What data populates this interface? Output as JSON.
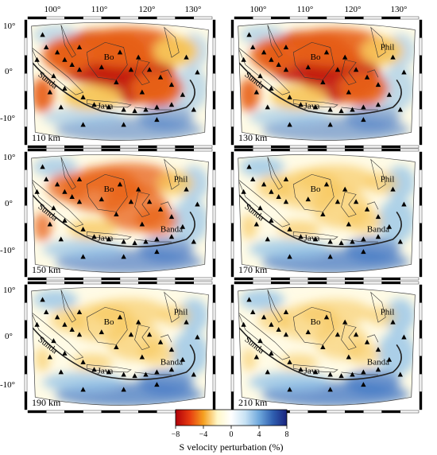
{
  "top_lon_ticks": [
    "100°",
    "110°",
    "120°",
    "130°"
  ],
  "lat_ticks": [
    "10°",
    "0°",
    "-10°"
  ],
  "region_labels": {
    "bo": "Bo",
    "sunda": "Sunda",
    "java": "Java",
    "phil": "Phil",
    "banda": "Banda"
  },
  "panels": [
    {
      "depth": "110 km",
      "strength": 1.0,
      "labels": [
        "bo",
        "sunda",
        "java"
      ]
    },
    {
      "depth": "130 km",
      "strength": 0.92,
      "labels": [
        "bo",
        "sunda",
        "java",
        "phil"
      ]
    },
    {
      "depth": "150 km",
      "strength": 0.65,
      "labels": [
        "bo",
        "sunda",
        "java",
        "phil",
        "banda"
      ]
    },
    {
      "depth": "170 km",
      "strength": 0.45,
      "labels": [
        "bo",
        "sunda",
        "java",
        "phil",
        "banda"
      ]
    },
    {
      "depth": "190 km",
      "strength": 0.4,
      "labels": [
        "bo",
        "sunda",
        "java",
        "phil",
        "banda"
      ]
    },
    {
      "depth": "210 km",
      "strength": 0.32,
      "labels": [
        "bo",
        "sunda",
        "java",
        "phil",
        "banda"
      ]
    }
  ],
  "colorbar": {
    "label": "S velocity perturbation (%)",
    "ticks": [
      "−8",
      "−4",
      "0",
      "4",
      "8"
    ],
    "range": [
      -8,
      8
    ],
    "colors": [
      "#b0000a",
      "#e63a10",
      "#f5a020",
      "#fff7c8",
      "#ffffff",
      "#c8e2f4",
      "#6fa8dc",
      "#2f5fb0",
      "#1a237e"
    ]
  },
  "colors": {
    "strong_slow": "#c41a0a",
    "slow": "#e8621a",
    "mild_slow": "#f7c65a",
    "neutral": "#fffbe6",
    "fast": "#8fc0e8",
    "strong_fast": "#3f74c4"
  }
}
